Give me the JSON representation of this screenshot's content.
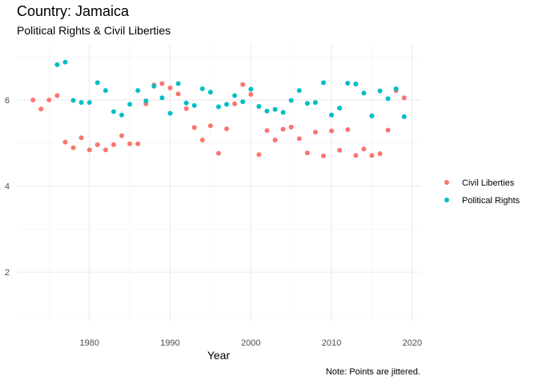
{
  "chart_data": {
    "type": "scatter",
    "title": "Country: Jamaica",
    "subtitle": "Political Rights & Civil Liberties",
    "xlabel": "Year",
    "ylabel": "",
    "caption": "Note: Points are jittered.",
    "xlim": [
      1971,
      2021
    ],
    "ylim": [
      0.85,
      7.3
    ],
    "x_ticks": [
      1980,
      1990,
      2000,
      2010,
      2020
    ],
    "y_ticks": [
      2,
      4,
      6
    ],
    "grid": true,
    "legend_position": "right",
    "series": [
      {
        "name": "Civil Liberties",
        "color": "#F8766D",
        "points": [
          [
            1973,
            6.0
          ],
          [
            1974,
            5.79
          ],
          [
            1975,
            6.0
          ],
          [
            1976,
            6.1
          ],
          [
            1977,
            5.02
          ],
          [
            1978,
            4.89
          ],
          [
            1979,
            5.12
          ],
          [
            1980,
            4.84
          ],
          [
            1981,
            4.96
          ],
          [
            1982,
            4.84
          ],
          [
            1983,
            4.96
          ],
          [
            1984,
            5.17
          ],
          [
            1985,
            4.98
          ],
          [
            1986,
            4.98
          ],
          [
            1987,
            5.91
          ],
          [
            1988,
            6.35
          ],
          [
            1989,
            6.38
          ],
          [
            1990,
            6.28
          ],
          [
            1991,
            6.14
          ],
          [
            1992,
            5.8
          ],
          [
            1993,
            5.36
          ],
          [
            1994,
            5.07
          ],
          [
            1995,
            5.4
          ],
          [
            1996,
            4.76
          ],
          [
            1997,
            5.33
          ],
          [
            1998,
            5.91
          ],
          [
            1999,
            6.36
          ],
          [
            2000,
            6.13
          ],
          [
            2001,
            4.73
          ],
          [
            2002,
            5.29
          ],
          [
            2003,
            5.07
          ],
          [
            2004,
            5.32
          ],
          [
            2005,
            5.37
          ],
          [
            2006,
            5.1
          ],
          [
            2007,
            4.77
          ],
          [
            2008,
            5.25
          ],
          [
            2009,
            4.7
          ],
          [
            2010,
            5.28
          ],
          [
            2011,
            4.83
          ],
          [
            2012,
            5.31
          ],
          [
            2013,
            4.71
          ],
          [
            2014,
            4.86
          ],
          [
            2015,
            4.71
          ],
          [
            2016,
            4.75
          ],
          [
            2017,
            5.3
          ],
          [
            2018,
            6.22
          ],
          [
            2019,
            6.05
          ]
        ]
      },
      {
        "name": "Political Rights",
        "color": "#00BFC4",
        "points": [
          [
            1976,
            6.82
          ],
          [
            1977,
            6.88
          ],
          [
            1978,
            5.99
          ],
          [
            1979,
            5.94
          ],
          [
            1980,
            5.94
          ],
          [
            1981,
            6.4
          ],
          [
            1982,
            6.22
          ],
          [
            1983,
            5.73
          ],
          [
            1984,
            5.65
          ],
          [
            1985,
            5.9
          ],
          [
            1986,
            6.22
          ],
          [
            1987,
            5.98
          ],
          [
            1988,
            6.32
          ],
          [
            1989,
            6.05
          ],
          [
            1990,
            5.69
          ],
          [
            1991,
            6.38
          ],
          [
            1992,
            5.93
          ],
          [
            1993,
            5.87
          ],
          [
            1994,
            6.26
          ],
          [
            1995,
            6.18
          ],
          [
            1996,
            5.84
          ],
          [
            1997,
            5.9
          ],
          [
            1998,
            6.1
          ],
          [
            1999,
            5.96
          ],
          [
            2000,
            6.25
          ],
          [
            2001,
            5.85
          ],
          [
            2002,
            5.74
          ],
          [
            2003,
            5.78
          ],
          [
            2004,
            5.71
          ],
          [
            2005,
            5.99
          ],
          [
            2006,
            6.22
          ],
          [
            2007,
            5.92
          ],
          [
            2008,
            5.94
          ],
          [
            2009,
            6.4
          ],
          [
            2010,
            5.65
          ],
          [
            2011,
            5.81
          ],
          [
            2012,
            6.39
          ],
          [
            2013,
            6.37
          ],
          [
            2014,
            6.16
          ],
          [
            2015,
            5.63
          ],
          [
            2016,
            6.21
          ],
          [
            2017,
            6.03
          ],
          [
            2018,
            6.26
          ],
          [
            2019,
            5.61
          ]
        ]
      }
    ]
  }
}
